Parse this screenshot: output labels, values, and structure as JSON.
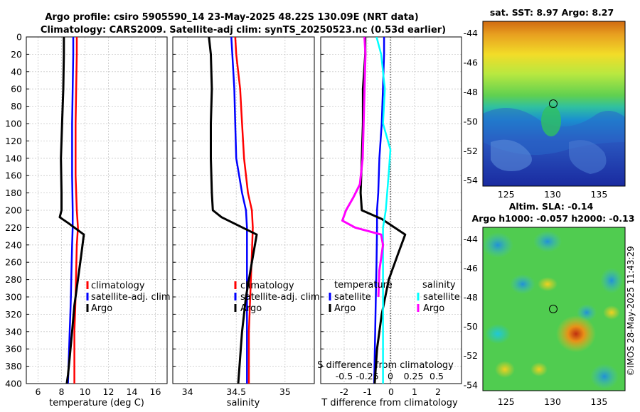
{
  "title": {
    "line1": "Argo profile: csiro 5905590_14 23-May-2025 48.22S 130.09E (NRT data)",
    "line2": "Climatology: CARS2009. Satellite-adj clim: synTS_20250523.nc (0.53d earlier)"
  },
  "sst_title": "sat. SST: 8.97 Argo: 8.27",
  "sla_title1": "Altim. SLA: -0.14",
  "sla_title2": "Argo h1000: -0.057 h2000: -0.13",
  "credit": "©IMOS 28-May-2025 11:43:29",
  "colors": {
    "climatology": "#ff0000",
    "satellite": "#0000ff",
    "argo": "#000000",
    "sal_sat": "#00ffff",
    "sal_argo": "#ff00ff",
    "grid": "#c8c8c8"
  },
  "legend1": {
    "climatology": "climatology",
    "satellite": "satellite-adj. clim",
    "argo": "Argo"
  },
  "legend3": {
    "temp_header": "temperature",
    "sal_header": "salinity",
    "satellite": "satellite",
    "argo": "Argo"
  },
  "axes": {
    "depth_ticks": [
      "0",
      "20",
      "40",
      "60",
      "80",
      "100",
      "120",
      "140",
      "160",
      "180",
      "200",
      "220",
      "240",
      "260",
      "280",
      "300",
      "320",
      "340",
      "360",
      "380",
      "400"
    ],
    "temp_xlabel": "temperature (deg C)",
    "temp_ticks": [
      "6",
      "8",
      "10",
      "12",
      "14",
      "16"
    ],
    "sal_xlabel": "salinity",
    "sal_ticks": [
      "34",
      "34.5",
      "35"
    ],
    "diff_xlabel": "T difference from climatology",
    "diff_ticks": [
      "-2",
      "-1",
      "0",
      "1",
      "2"
    ],
    "sdiff_label": "S difference from climatology",
    "sdiff_ticks": [
      "-0.5",
      "-0.25",
      "0",
      "0.25",
      "0.5"
    ],
    "map_lon_ticks": [
      "125",
      "130",
      "135"
    ],
    "map_lat_ticks": [
      "-44",
      "-46",
      "-48",
      "-50",
      "-52",
      "-54"
    ]
  },
  "chart_data": [
    {
      "type": "line",
      "name": "temperature",
      "xlim": [
        5,
        17
      ],
      "ylim": [
        400,
        0
      ],
      "series": [
        {
          "name": "climatology",
          "x": [
            9.3,
            9.3,
            9.25,
            9.2,
            9.2,
            9.3,
            9.4,
            9.3,
            9.25,
            9.2,
            9.15,
            9.1,
            9.1,
            9.1,
            9.1
          ],
          "y": [
            0,
            20,
            60,
            100,
            160,
            200,
            220,
            240,
            270,
            300,
            320,
            340,
            360,
            380,
            400
          ]
        },
        {
          "name": "satellite-adj. clim",
          "x": [
            9.0,
            9.0,
            8.95,
            8.9,
            8.9,
            8.95,
            8.95,
            8.9,
            8.85,
            8.8,
            8.75,
            8.7,
            8.65,
            8.6,
            8.55
          ],
          "y": [
            0,
            20,
            60,
            100,
            160,
            200,
            220,
            240,
            270,
            300,
            320,
            340,
            360,
            380,
            400
          ]
        },
        {
          "name": "Argo",
          "x": [
            8.2,
            8.2,
            8.15,
            8.05,
            7.95,
            8.0,
            8.0,
            7.85,
            8.6,
            9.9,
            9.7,
            9.4,
            9.1,
            8.9,
            8.7,
            8.55,
            8.45
          ],
          "y": [
            0,
            20,
            60,
            100,
            140,
            180,
            200,
            208,
            215,
            228,
            250,
            280,
            310,
            340,
            370,
            390,
            400
          ]
        }
      ]
    },
    {
      "type": "line",
      "name": "salinity",
      "xlim": [
        33.85,
        35.3
      ],
      "ylim": [
        400,
        0
      ],
      "series": [
        {
          "name": "climatology",
          "x": [
            34.49,
            34.5,
            34.54,
            34.56,
            34.58,
            34.62,
            34.66,
            34.67,
            34.66,
            34.65,
            34.64,
            34.63,
            34.63,
            34.63
          ],
          "y": [
            0,
            20,
            60,
            100,
            140,
            180,
            200,
            220,
            250,
            280,
            310,
            340,
            370,
            400
          ]
        },
        {
          "name": "satellite-adj. clim",
          "x": [
            34.45,
            34.46,
            34.48,
            34.49,
            34.5,
            34.56,
            34.6,
            34.61,
            34.61,
            34.61,
            34.61,
            34.61,
            34.61
          ],
          "y": [
            0,
            20,
            60,
            100,
            140,
            180,
            200,
            220,
            250,
            280,
            310,
            340,
            400
          ]
        },
        {
          "name": "Argo",
          "x": [
            34.22,
            34.24,
            34.25,
            34.24,
            34.24,
            34.25,
            34.26,
            34.35,
            34.71,
            34.66,
            34.6,
            34.56,
            34.54,
            34.52
          ],
          "y": [
            0,
            20,
            60,
            100,
            140,
            180,
            200,
            208,
            228,
            260,
            300,
            340,
            370,
            400
          ]
        }
      ]
    },
    {
      "type": "line",
      "name": "T/S difference from climatology",
      "xlim": [
        -3,
        3
      ],
      "ylim": [
        400,
        0
      ],
      "series": [
        {
          "name": "temperature satellite",
          "x": [
            -0.3,
            -0.3,
            -0.35,
            -0.4,
            -0.5,
            -0.55,
            -0.6,
            -0.6,
            -0.62,
            -0.65,
            -0.68,
            -0.7,
            -0.72
          ],
          "y": [
            0,
            20,
            60,
            100,
            140,
            180,
            200,
            220,
            260,
            300,
            340,
            370,
            400
          ]
        },
        {
          "name": "temperature Argo",
          "x": [
            -1.1,
            -1.1,
            -1.2,
            -1.2,
            -1.25,
            -1.3,
            -1.25,
            -0.4,
            0.6,
            0.3,
            -0.1,
            -0.4,
            -0.6,
            -0.7
          ],
          "y": [
            0,
            20,
            60,
            100,
            140,
            180,
            200,
            210,
            228,
            250,
            280,
            320,
            360,
            400
          ]
        },
        {
          "name": "salinity satellite",
          "x": [
            -0.15,
            -0.1,
            -0.06,
            -0.08,
            0.0,
            -0.02,
            -0.05,
            -0.08,
            -0.08,
            -0.08,
            -0.08,
            -0.08,
            -0.08
          ],
          "y": [
            0,
            20,
            60,
            100,
            130,
            160,
            200,
            220,
            260,
            300,
            340,
            370,
            400
          ]
        },
        {
          "name": "salinity Argo",
          "x": [
            -0.28,
            -0.27,
            -0.28,
            -0.29,
            -0.3,
            -0.33,
            -0.4,
            -0.48,
            -0.52,
            -0.38,
            -0.1,
            -0.08,
            -0.12,
            -0.13
          ],
          "y": [
            0,
            20,
            60,
            100,
            140,
            170,
            185,
            200,
            212,
            220,
            228,
            240,
            270,
            300
          ]
        }
      ]
    }
  ]
}
